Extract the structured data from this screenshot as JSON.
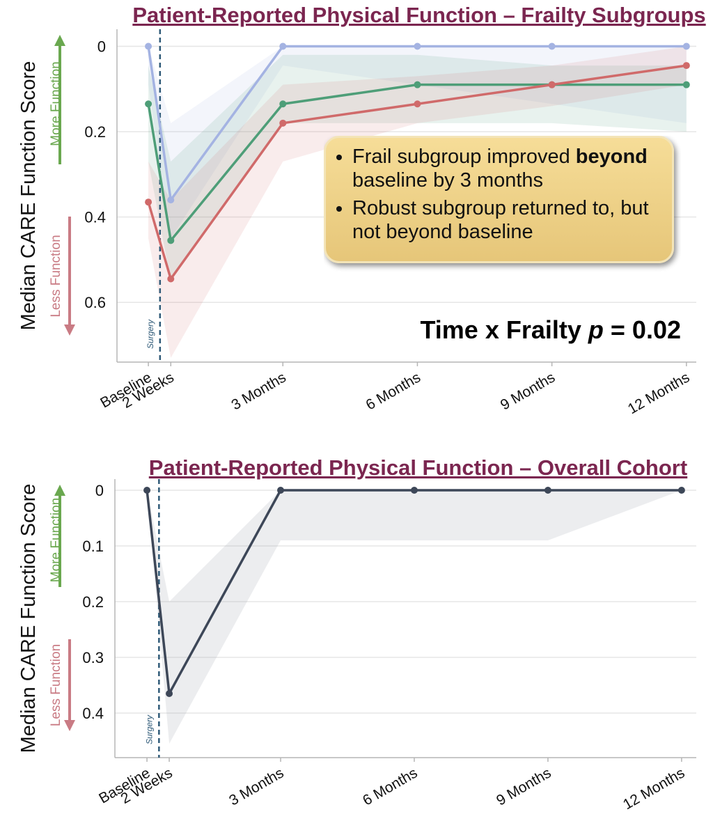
{
  "chart_data": [
    {
      "type": "line",
      "title": "Patient-Reported Physical Function – Frailty Subgroups",
      "ylabel": "Median CARE Function Score",
      "up_label": "More Function",
      "down_label": "Less Function",
      "x": [
        0,
        0.5,
        3,
        6,
        9,
        12
      ],
      "xlim": [
        -0.7,
        12.22
      ],
      "xticks": [
        {
          "value": 0,
          "label": "Baseline"
        },
        {
          "value": 0.5,
          "label": "2 Weeks"
        },
        {
          "value": 3,
          "label": "3 Months"
        },
        {
          "value": 6,
          "label": "6 Months"
        },
        {
          "value": 9,
          "label": "9 Months"
        },
        {
          "value": 12,
          "label": "12 Months"
        }
      ],
      "ylim": [
        0.74,
        -0.04
      ],
      "yticks": [
        0,
        0.2,
        0.4,
        0.6
      ],
      "grid": true,
      "surgery": {
        "x": 0.26,
        "label": "Surgery"
      },
      "series": [
        {
          "color": "#a4b3e2",
          "values": [
            0,
            0.36,
            0,
            0,
            0,
            0
          ],
          "band_low": [
            0,
            0.18,
            0,
            0,
            0,
            0
          ],
          "band_high": [
            0.09,
            0.45,
            0.045,
            0.09,
            0.135,
            0.18
          ]
        },
        {
          "color": "#4e9e78",
          "values": [
            0.135,
            0.455,
            0.135,
            0.09,
            0.09,
            0.09
          ],
          "band_low": [
            0.045,
            0.27,
            0.02,
            0.02,
            0.045,
            0.045
          ],
          "band_high": [
            0.27,
            0.55,
            0.18,
            0.18,
            0.18,
            0.2
          ]
        },
        {
          "color": "#d06a6a",
          "values": [
            0.365,
            0.545,
            0.18,
            0.135,
            0.09,
            0.045
          ],
          "band_low": [
            0.27,
            0.36,
            0.09,
            0.07,
            0.045,
            0
          ],
          "band_high": [
            0.45,
            0.73,
            0.27,
            0.18,
            0.14,
            0.09
          ]
        }
      ],
      "callout": [
        {
          "text": "Frail subgroup improved",
          "bold": "beyond",
          "after": "baseline by 3 months"
        },
        {
          "text": "Robust subgroup returned to, but not beyond baseline"
        }
      ],
      "stat": {
        "text": "Time x Frailty",
        "italic": "p",
        "after": "= 0.02"
      }
    },
    {
      "type": "line",
      "title": "Patient-Reported Physical Function – Overall Cohort",
      "ylabel": "Median CARE Function Score",
      "up_label": "More Function",
      "down_label": "Less Function",
      "x": [
        0,
        0.5,
        3,
        6,
        9,
        12
      ],
      "xlim": [
        -0.72,
        12.33
      ],
      "xticks": [
        {
          "value": 0,
          "label": "Baseline"
        },
        {
          "value": 0.5,
          "label": "2 Weeks"
        },
        {
          "value": 3,
          "label": "3 Months"
        },
        {
          "value": 6,
          "label": "6 Months"
        },
        {
          "value": 9,
          "label": "9 Months"
        },
        {
          "value": 12,
          "label": "12 Months"
        }
      ],
      "ylim": [
        0.48,
        -0.02
      ],
      "yticks": [
        0,
        0.1,
        0.2,
        0.3,
        0.4
      ],
      "grid": true,
      "surgery": {
        "x": 0.27,
        "label": "Surgery"
      },
      "series": [
        {
          "color": "#3d4758",
          "values": [
            0,
            0.365,
            0,
            0,
            0,
            0
          ],
          "band_low": [
            0,
            0.2,
            0,
            0,
            0,
            0
          ],
          "band_high": [
            0,
            0.455,
            0.09,
            0.09,
            0.09,
            0
          ]
        }
      ]
    }
  ]
}
